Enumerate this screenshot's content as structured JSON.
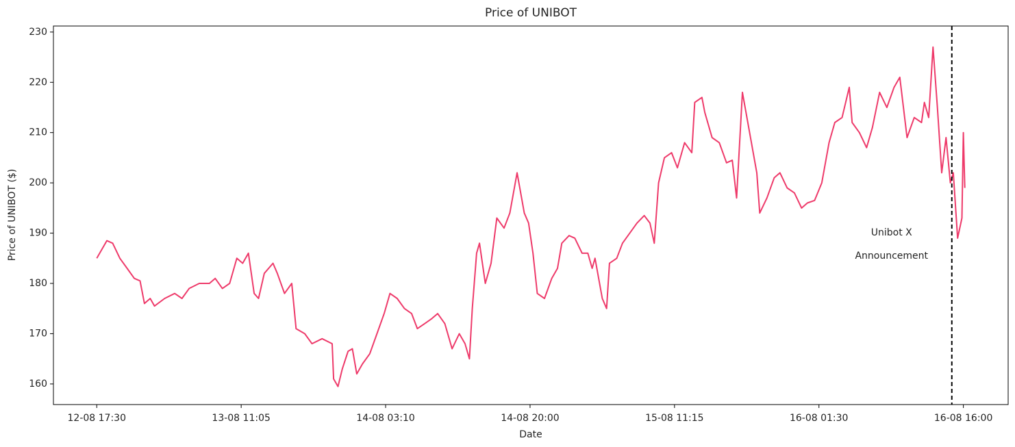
{
  "chart_data": {
    "type": "line",
    "title": "Price of UNIBOT",
    "xlabel": "Date",
    "ylabel": "Price of UNIBOT ($)",
    "x": [
      0,
      4,
      7,
      11,
      16,
      21,
      26,
      30,
      33,
      37,
      40,
      47,
      54,
      59,
      64,
      71,
      78,
      82,
      87,
      92,
      97,
      101,
      105,
      109,
      112,
      116,
      122,
      125,
      130,
      135,
      138,
      144,
      149,
      156,
      163,
      164,
      167,
      170,
      174,
      177,
      180,
      184,
      189,
      194,
      199,
      203,
      208,
      213,
      218,
      222,
      227,
      232,
      236,
      241,
      246,
      251,
      255,
      258,
      260,
      263,
      265,
      269,
      273,
      277,
      282,
      286,
      291,
      296,
      299,
      302,
      305,
      310,
      315,
      319,
      322,
      327,
      331,
      336,
      340,
      343,
      345,
      350,
      353,
      355,
      360,
      364,
      369,
      374,
      379,
      383,
      386,
      389,
      393,
      398,
      402,
      407,
      412,
      414,
      419,
      421,
      426,
      431,
      436,
      440,
      443,
      447,
      452,
      457,
      459,
      464,
      469,
      473,
      478,
      483,
      488,
      492,
      497,
      502,
      507,
      511,
      516,
      521,
      523,
      528,
      533,
      537,
      542,
      547,
      552,
      556,
      561,
      566,
      571,
      573,
      576,
      579,
      582,
      585,
      588,
      591,
      593,
      596,
      599,
      600,
      601
    ],
    "series": [
      {
        "name": "UNIBOT",
        "color": "#ee3a6a",
        "values": [
          185,
          187,
          188.5,
          188,
          185,
          183,
          181,
          180.5,
          176,
          177,
          175.5,
          177,
          178,
          177,
          179,
          180,
          180,
          181,
          179,
          180,
          185,
          184,
          186,
          178,
          177,
          182,
          184,
          182,
          178,
          180,
          171,
          170,
          168,
          169,
          168,
          161,
          159.5,
          163,
          166.5,
          167,
          162,
          164,
          166,
          170,
          174,
          178,
          177,
          175,
          174,
          171,
          172,
          173,
          174,
          172,
          167,
          170,
          168,
          165,
          175,
          186,
          188,
          180,
          184,
          193,
          191,
          194,
          202,
          194,
          192,
          186,
          178,
          177,
          181,
          183,
          188,
          189.5,
          189,
          186,
          186,
          183,
          185,
          177,
          175,
          184,
          185,
          188,
          190,
          192,
          193.5,
          192,
          188,
          200,
          205,
          206,
          203,
          208,
          206,
          216,
          217,
          214,
          209,
          208,
          204,
          204.5,
          197,
          218,
          210,
          202,
          194,
          197,
          201,
          202,
          199,
          198,
          195,
          196,
          196.5,
          200,
          208,
          212,
          213,
          219,
          212,
          210,
          207,
          211,
          218,
          215,
          219,
          221,
          209,
          213,
          212,
          216,
          213,
          227,
          215,
          202,
          209,
          200,
          202,
          189,
          193,
          210,
          199
        ]
      }
    ],
    "xlim": [
      -30,
      631
    ],
    "ylim": [
      155.9,
      231.2
    ],
    "xticks": [
      {
        "value": 0,
        "label": "12-08 17:30"
      },
      {
        "value": 100,
        "label": "13-08 11:05"
      },
      {
        "value": 200,
        "label": "14-08 03:10"
      },
      {
        "value": 300,
        "label": "14-08 20:00"
      },
      {
        "value": 400,
        "label": "15-08 11:15"
      },
      {
        "value": 500,
        "label": "16-08 01:30"
      },
      {
        "value": 600,
        "label": "16-08 16:00"
      }
    ],
    "yticks": [
      160,
      170,
      180,
      190,
      200,
      210,
      220,
      230
    ],
    "annotation": {
      "text": [
        "Unibot X",
        "Announcement"
      ],
      "x": 592,
      "color": "#000000"
    }
  }
}
